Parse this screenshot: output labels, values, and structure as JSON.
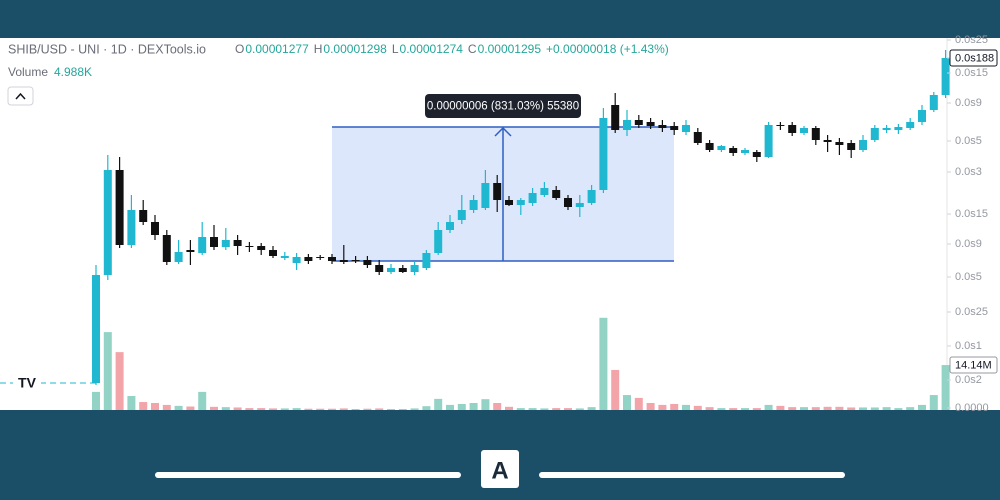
{
  "header": {
    "symbol": "SHIB/USD - UNI · 1D · DEXTools.io",
    "ohlc": [
      {
        "key": "O",
        "value": "0.00001277"
      },
      {
        "key": "H",
        "value": "0.00001298"
      },
      {
        "key": "L",
        "value": "0.00001274"
      },
      {
        "key": "C",
        "value": "0.00001295"
      }
    ],
    "change": "+0.00000018 (+1.43%)",
    "volume_label": "Volume",
    "volume_value": "4.988K"
  },
  "measure": {
    "label": "0.00000006 (831.03%) 55380"
  },
  "chart_data": {
    "type": "candlestick",
    "up_color": "#1fb8d0",
    "down_color": "#111111",
    "volume_up_color": "#93d3c6",
    "volume_down_color": "#f3a4a9",
    "open": [
      1.35e-06,
      6.75e-06,
      1.2e-05,
      8.25e-06,
      1e-05,
      9.4e-06,
      8.75e-06,
      7.4e-06,
      8e-06,
      7.85e-06,
      8.65e-06,
      8.15e-06,
      8.5e-06,
      8.2e-06,
      8.2e-06,
      8e-06,
      7.6e-06,
      7.35e-06,
      7.65e-06,
      7.65e-06,
      7.65e-06,
      7.5e-06,
      7.5e-06,
      7.5e-06,
      7.25e-06,
      6.9e-06,
      7.1e-06,
      6.9e-06,
      7.1e-06,
      7.85e-06,
      9e-06,
      9.5e-06,
      1e-05,
      1.01e-05,
      1.135e-05,
      1.05e-05,
      1.025e-05,
      1.035e-05,
      1.075e-05,
      1.1e-05,
      1.06e-05,
      1.015e-05,
      1.035e-05,
      1.1e-05,
      1.525e-05,
      1.4e-05,
      1.45e-05,
      1.44e-05,
      1.425e-05,
      1.42e-05,
      1.39e-05,
      1.39e-05,
      1.335e-05,
      1.3e-05,
      1.31e-05,
      1.285e-05,
      1.29e-05,
      1.265e-05,
      1.425e-05,
      1.425e-05,
      1.385e-05,
      1.41e-05,
      1.35e-05,
      1.34e-05,
      1.335e-05,
      1.3e-05,
      1.35e-05,
      1.4e-05,
      1.4e-05,
      1.41e-05,
      1.44e-05,
      1.5e-05,
      1.575e-05
    ],
    "high": [
      7.25e-06,
      1.275e-05,
      1.265e-05,
      1.075e-05,
      1.05e-05,
      9.75e-06,
      9e-06,
      8.5e-06,
      8.5e-06,
      9.4e-06,
      9.25e-06,
      9.1e-06,
      8.75e-06,
      8.4e-06,
      8.35e-06,
      8.2e-06,
      7.9e-06,
      7.85e-06,
      7.8e-06,
      7.75e-06,
      7.8e-06,
      8.25e-06,
      7.7e-06,
      7.7e-06,
      7.5e-06,
      7.3e-06,
      7.25e-06,
      7.4e-06,
      8e-06,
      9.4e-06,
      9.75e-06,
      1.075e-05,
      1.075e-05,
      1.2e-05,
      1.175e-05,
      1.07e-05,
      1.06e-05,
      1.11e-05,
      1.14e-05,
      1.12e-05,
      1.075e-05,
      1.075e-05,
      1.125e-05,
      1.51e-05,
      1.585e-05,
      1.5e-05,
      1.475e-05,
      1.46e-05,
      1.45e-05,
      1.44e-05,
      1.45e-05,
      1.41e-05,
      1.35e-05,
      1.325e-05,
      1.32e-05,
      1.31e-05,
      1.3e-05,
      1.44e-05,
      1.44e-05,
      1.44e-05,
      1.42e-05,
      1.42e-05,
      1.375e-05,
      1.36e-05,
      1.35e-05,
      1.375e-05,
      1.425e-05,
      1.425e-05,
      1.43e-05,
      1.46e-05,
      1.525e-05,
      1.59e-05,
      1.8e-05
    ],
    "low": [
      1.25e-06,
      6.5e-06,
      8.1e-06,
      8.1e-06,
      9.25e-06,
      8.5e-06,
      7.25e-06,
      7.3e-06,
      7.25e-06,
      7.75e-06,
      8e-06,
      8e-06,
      7.75e-06,
      7.9e-06,
      7.75e-06,
      7.6e-06,
      7.5e-06,
      7e-06,
      7.3e-06,
      7.5e-06,
      7.3e-06,
      7.3e-06,
      7.35e-06,
      7.1e-06,
      6.75e-06,
      6.8e-06,
      6.85e-06,
      6.75e-06,
      7e-06,
      7.75e-06,
      8.85e-06,
      9.3e-06,
      9.85e-06,
      1e-05,
      9.9e-06,
      1.02e-05,
      9.75e-06,
      1.02e-05,
      1.065e-05,
      1.05e-05,
      1e-05,
      9.65e-06,
      1.025e-05,
      1.085e-05,
      1.385e-05,
      1.37e-05,
      1.41e-05,
      1.405e-05,
      1.39e-05,
      1.375e-05,
      1.375e-05,
      1.325e-05,
      1.29e-05,
      1.29e-05,
      1.27e-05,
      1.275e-05,
      1.24e-05,
      1.26e-05,
      1.4e-05,
      1.37e-05,
      1.375e-05,
      1.325e-05,
      1.29e-05,
      1.275e-05,
      1.26e-05,
      1.29e-05,
      1.34e-05,
      1.385e-05,
      1.38e-05,
      1.4e-05,
      1.425e-05,
      1.49e-05,
      1.56e-05
    ],
    "close": [
      6.75e-06,
      1.2e-05,
      8.25e-06,
      1e-05,
      9.4e-06,
      8.75e-06,
      7.4e-06,
      7.9e-06,
      7.9e-06,
      8.65e-06,
      8.15e-06,
      8.5e-06,
      8.2e-06,
      8.15e-06,
      8e-06,
      7.7e-06,
      7.7e-06,
      7.65e-06,
      7.45e-06,
      7.6e-06,
      7.45e-06,
      7.4e-06,
      7.45e-06,
      7.25e-06,
      6.9e-06,
      7.1e-06,
      6.9e-06,
      7.25e-06,
      7.85e-06,
      9e-06,
      9.4e-06,
      1e-05,
      1.05e-05,
      1.135e-05,
      1.05e-05,
      1.025e-05,
      1.05e-05,
      1.085e-05,
      1.11e-05,
      1.06e-05,
      1.015e-05,
      1.035e-05,
      1.1e-05,
      1.46e-05,
      1.4e-05,
      1.45e-05,
      1.425e-05,
      1.42e-05,
      1.41e-05,
      1.4e-05,
      1.425e-05,
      1.335e-05,
      1.3e-05,
      1.32e-05,
      1.285e-05,
      1.3e-05,
      1.265e-05,
      1.425e-05,
      1.42e-05,
      1.385e-05,
      1.41e-05,
      1.35e-05,
      1.34e-05,
      1.325e-05,
      1.3e-05,
      1.35e-05,
      1.41e-05,
      1.41e-05,
      1.415e-05,
      1.44e-05,
      1.5e-05,
      1.575e-05,
      1.76e-05
    ],
    "volume": [
      5.7,
      24.5,
      18.2,
      4.4,
      2.5,
      2.2,
      1.6,
      1.3,
      1.1,
      5.7,
      1.0,
      0.9,
      0.8,
      0.6,
      0.6,
      0.5,
      0.5,
      0.6,
      0.4,
      0.4,
      0.4,
      0.5,
      0.3,
      0.4,
      0.5,
      0.3,
      0.3,
      0.5,
      1.2,
      3.5,
      1.6,
      1.9,
      2.2,
      3.4,
      2.2,
      1.0,
      0.6,
      0.6,
      0.5,
      0.6,
      0.6,
      0.5,
      0.9,
      29.0,
      12.6,
      4.7,
      3.8,
      2.2,
      1.6,
      1.9,
      1.6,
      1.3,
      0.9,
      0.6,
      0.6,
      0.6,
      0.6,
      1.6,
      1.3,
      0.9,
      0.9,
      0.9,
      1.0,
      1.0,
      0.8,
      0.8,
      0.8,
      0.9,
      0.6,
      0.9,
      1.6,
      4.7,
      14.14
    ],
    "ylim": [
      0,
      1.86e-05
    ],
    "yticks": [
      {
        "value": 1.85e-05,
        "label": "0.0s25"
      },
      {
        "value": 1.76e-05,
        "label": "0.0s188"
      },
      {
        "value": 1.685e-05,
        "label": "0.0s15"
      },
      {
        "value": 1.535e-05,
        "label": "0.0s9"
      },
      {
        "value": 1.345e-05,
        "label": "0.0s5"
      },
      {
        "value": 1.19e-05,
        "label": "0.0s3"
      },
      {
        "value": 9.8e-06,
        "label": "0.0s15"
      },
      {
        "value": 8.3e-06,
        "label": "0.0s9"
      },
      {
        "value": 6.65e-06,
        "label": "0.0s5"
      },
      {
        "value": 4.9e-06,
        "label": "0.0s25"
      },
      {
        "value": 3.2e-06,
        "label": "0.0s1"
      },
      {
        "value": 1.5e-06,
        "label": "0.0s2"
      },
      {
        "value": 1e-07,
        "label": "0.0000"
      }
    ],
    "volume_lim": [
      0,
      117
    ],
    "volume_ticks": [
      {
        "value": 14.14,
        "label": "14.14M"
      }
    ]
  }
}
